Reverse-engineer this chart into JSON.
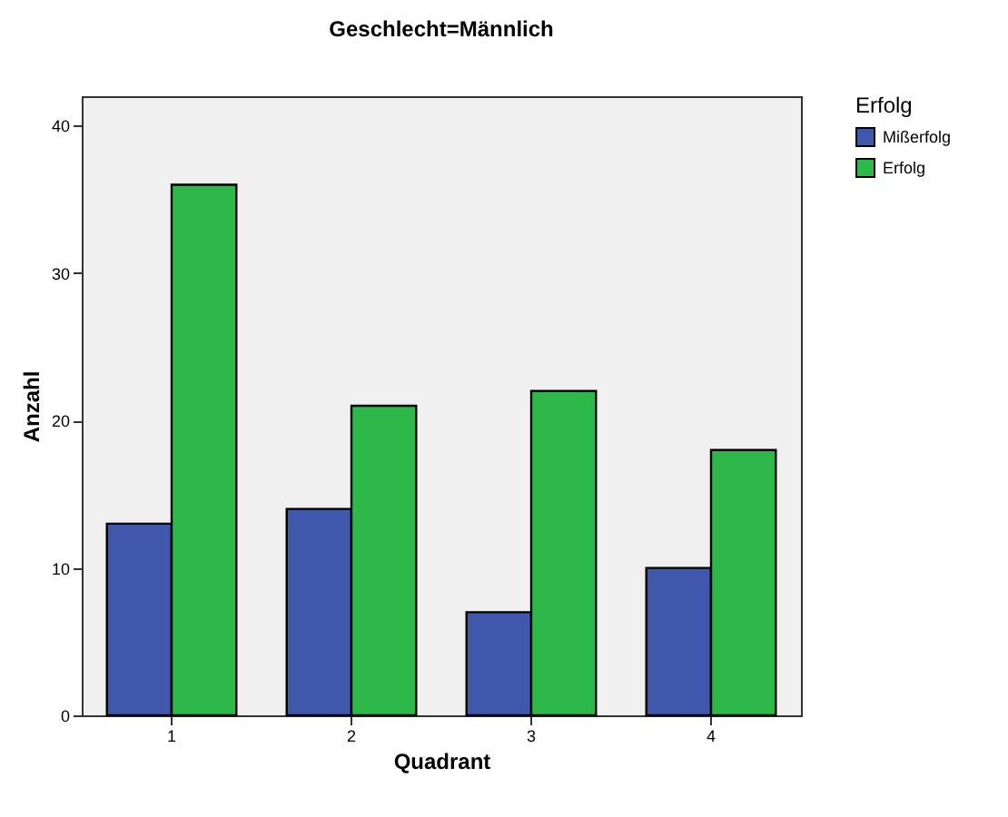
{
  "chart_data": {
    "type": "bar",
    "title": "Geschlecht=Männlich",
    "xlabel": "Quadrant",
    "ylabel": "Anzahl",
    "legend_title": "Erfolg",
    "categories": [
      "1",
      "2",
      "3",
      "4"
    ],
    "series": [
      {
        "name": "Mißerfolg",
        "color": "#3f58ab",
        "values": [
          13,
          14,
          7,
          10
        ]
      },
      {
        "name": "Erfolg",
        "color": "#2fb84a",
        "values": [
          36,
          21,
          22,
          18
        ]
      }
    ],
    "ylim": [
      0,
      42
    ],
    "yticks": [
      0,
      10,
      20,
      30,
      40
    ],
    "grid": false,
    "legend": "top right"
  }
}
